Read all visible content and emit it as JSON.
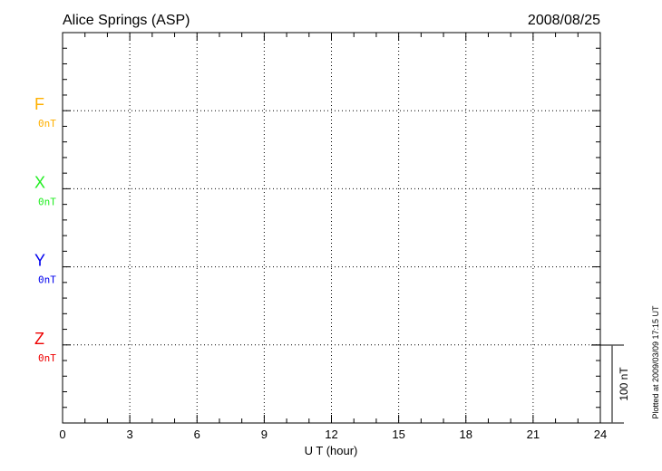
{
  "chart_data": {
    "type": "line",
    "title": "Alice Springs (ASP)",
    "date": "2008/08/25",
    "xlabel": "U T (hour)",
    "xlim": [
      0,
      24
    ],
    "xticks": [
      "0",
      "3",
      "6",
      "9",
      "12",
      "15",
      "18",
      "21",
      "24"
    ],
    "grid": true,
    "series": [
      {
        "name": "F",
        "baseline_label": "0nT",
        "color": "#ffb000",
        "values": []
      },
      {
        "name": "X",
        "baseline_label": "0nT",
        "color": "#22ee22",
        "values": []
      },
      {
        "name": "Y",
        "baseline_label": "0nT",
        "color": "#0000ee",
        "values": []
      },
      {
        "name": "Z",
        "baseline_label": "0nT",
        "color": "#ee0000",
        "values": []
      }
    ],
    "scale_bar_label": "100 nT",
    "footer": "Plotted at 2009/03/09 17:15 UT"
  }
}
